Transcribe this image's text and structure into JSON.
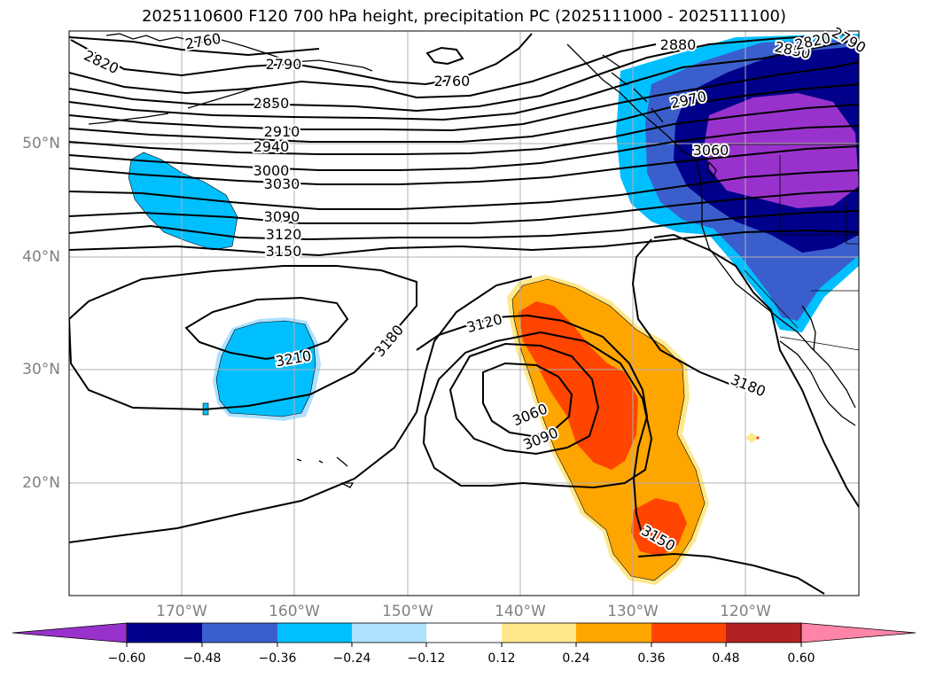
{
  "title": "2025110600 F120 700 hPa height, precipitation PC (2025111000 - 2025111100)",
  "lat_labels": [
    "50°N",
    "40°N",
    "30°N",
    "20°N"
  ],
  "lon_labels": [
    "170°W",
    "160°W",
    "150°W",
    "140°W",
    "130°W",
    "120°W"
  ],
  "contour_labels": {
    "c2760a": "2760",
    "c2760b": "2760",
    "c2790a": "2790",
    "c2790b": "2790",
    "c2820a": "2820",
    "c2820b": "2820",
    "c2850a": "2850",
    "c2850b": "2850",
    "c2880": "2880",
    "c2910": "2910",
    "c2940": "2940",
    "c2970": "2970",
    "c3000": "3000",
    "c3030": "3030",
    "c3060a": "3060",
    "c3060b": "3060",
    "c3090a": "3090",
    "c3090b": "3090",
    "c3120a": "3120",
    "c3120b": "3120",
    "c3150a": "3150",
    "c3150b": "3150",
    "c3180a": "3180",
    "c3180b": "3180",
    "c3210": "3210"
  },
  "colorbar": {
    "ticks": [
      "−0.60",
      "−0.48",
      "−0.36",
      "−0.24",
      "−0.12",
      "0.12",
      "0.24",
      "0.36",
      "0.48",
      "0.60"
    ],
    "colors": [
      "#9932CC",
      "#00008B",
      "#3A5FCD",
      "#00BFFF",
      "#ADE1FF",
      "#FFFFFF",
      "#FFE88C",
      "#FFA500",
      "#FF4500",
      "#B22222",
      "#FF85A8"
    ]
  }
}
